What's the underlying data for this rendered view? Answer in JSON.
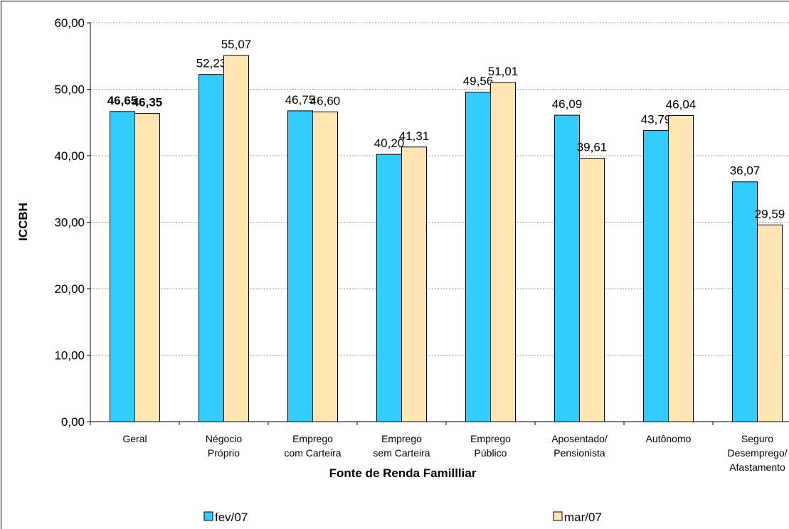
{
  "chart_data": {
    "type": "bar",
    "x_label": "Fonte de Renda Famillliar",
    "y_label": "ICCBH",
    "categories": [
      [
        "Geral"
      ],
      [
        "Négocio",
        "Próprio"
      ],
      [
        "Emprego",
        "com Carteira"
      ],
      [
        "Emprego",
        "sem Carteira"
      ],
      [
        "Emprego",
        "Público"
      ],
      [
        "Aposentado/",
        "Pensionista"
      ],
      [
        "Autônomo"
      ],
      [
        "Seguro",
        "Desemprego/",
        "Afastamento"
      ]
    ],
    "series": [
      {
        "name": "fev/07",
        "color": "#33ccff",
        "values": [
          46.65,
          52.23,
          46.75,
          40.2,
          49.56,
          46.09,
          43.79,
          36.07
        ],
        "value_labels": [
          "46,65",
          "52,23",
          "46,75",
          "40,20",
          "49,56",
          "46,09",
          "43,79",
          "36,07"
        ]
      },
      {
        "name": "mar/07",
        "color": "#ffe6b3",
        "values": [
          46.35,
          55.07,
          46.6,
          41.31,
          51.01,
          39.61,
          46.04,
          29.59
        ],
        "value_labels": [
          "46,35",
          "55,07",
          "46,60",
          "41,31",
          "51,01",
          "39,61",
          "46,04",
          "29,59"
        ]
      }
    ],
    "ylim": [
      0,
      60
    ],
    "yticks": [
      {
        "value": 0,
        "label": "0,00"
      },
      {
        "value": 10,
        "label": "10,00"
      },
      {
        "value": 20,
        "label": "20,00"
      },
      {
        "value": 30,
        "label": "30,00"
      },
      {
        "value": 40,
        "label": "40,00"
      },
      {
        "value": 50,
        "label": "50,00"
      },
      {
        "value": 60,
        "label": "60,00"
      }
    ],
    "grid": true
  }
}
